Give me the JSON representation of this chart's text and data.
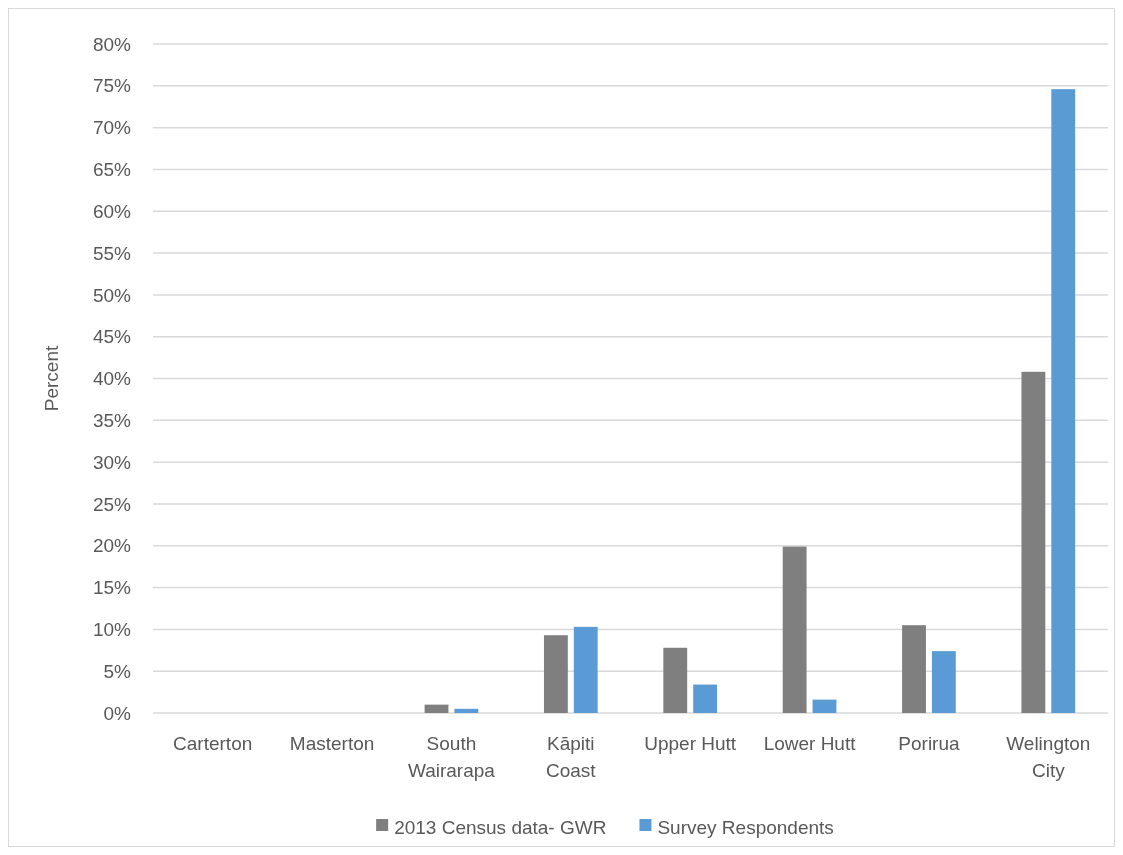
{
  "chart_data": {
    "type": "bar",
    "ylabel": "Percent",
    "categories": [
      "Carterton",
      "Masterton",
      "South Wairarapa",
      "Kāpiti Coast",
      "Upper Hutt",
      "Lower Hutt",
      "Porirua",
      "Welington City"
    ],
    "series": [
      {
        "name": "2013 Census data- GWR",
        "color": "#7f7f7f",
        "values": [
          0,
          0,
          1.0,
          9.3,
          7.8,
          19.9,
          10.5,
          40.8
        ]
      },
      {
        "name": "Survey Respondents",
        "color": "#5b9bd5",
        "values": [
          0,
          0,
          0.5,
          10.3,
          3.4,
          1.6,
          7.4,
          74.6
        ]
      }
    ],
    "ylim": [
      0,
      80
    ],
    "yticks": [
      {
        "value": 0,
        "label": "0%"
      },
      {
        "value": 5,
        "label": "5%"
      },
      {
        "value": 10,
        "label": "10%"
      },
      {
        "value": 15,
        "label": "15%"
      },
      {
        "value": 20,
        "label": "20%"
      },
      {
        "value": 25,
        "label": "25%"
      },
      {
        "value": 30,
        "label": "30%"
      },
      {
        "value": 35,
        "label": "35%"
      },
      {
        "value": 40,
        "label": "40%"
      },
      {
        "value": 45,
        "label": "45%"
      },
      {
        "value": 50,
        "label": "50%"
      },
      {
        "value": 55,
        "label": "55%"
      },
      {
        "value": 60,
        "label": "60%"
      },
      {
        "value": 65,
        "label": "65%"
      },
      {
        "value": 70,
        "label": "70%"
      },
      {
        "value": 75,
        "label": "75%"
      },
      {
        "value": 80,
        "label": "80%"
      }
    ],
    "grid": "y",
    "legend": "bottom"
  }
}
